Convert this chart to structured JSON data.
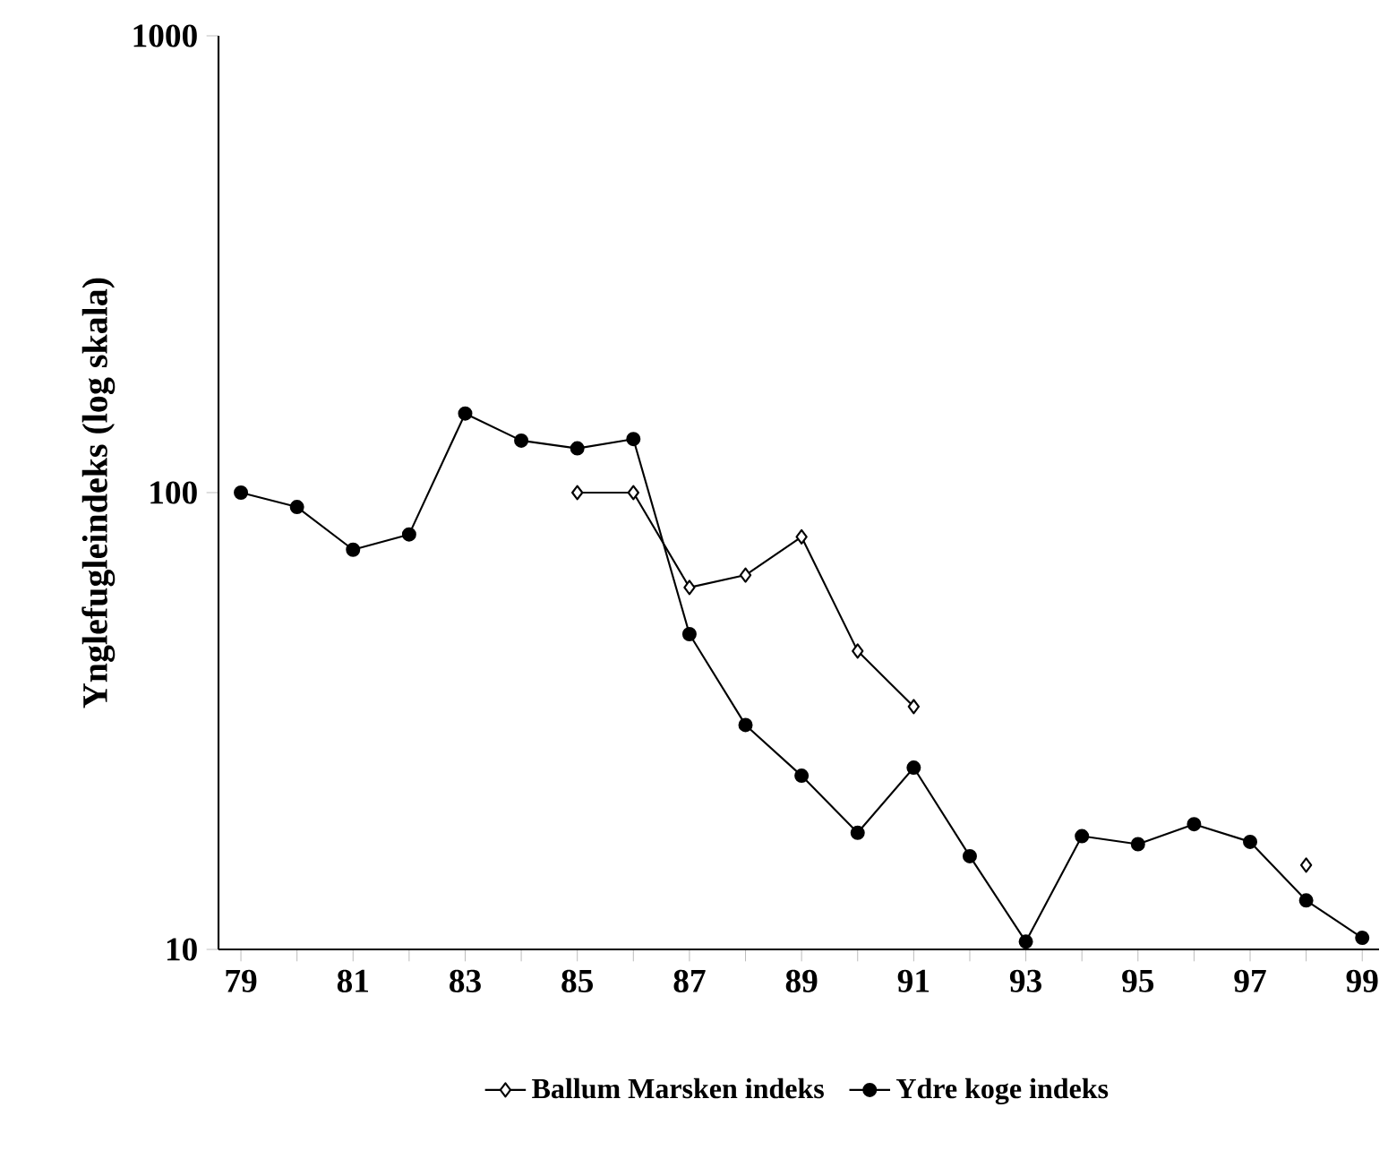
{
  "chart_data": {
    "type": "line",
    "ylabel": "Ynglefugleindeks (log skala)",
    "log": "y",
    "legend": "bottom",
    "line_style": "solid",
    "x": [
      79,
      80,
      81,
      82,
      83,
      84,
      85,
      86,
      87,
      88,
      89,
      90,
      91,
      92,
      93,
      94,
      95,
      96,
      97,
      98,
      99
    ],
    "series": [
      {
        "name": "Ballum Marsken indeks",
        "color": "#000000",
        "marker": "diamond",
        "values": [
          null,
          null,
          null,
          null,
          null,
          null,
          100,
          100,
          62,
          66,
          80,
          45,
          34,
          null,
          null,
          null,
          null,
          null,
          null,
          15.3,
          null
        ]
      },
      {
        "name": "Ydre koge indeks",
        "color": "#000000",
        "marker": "circle",
        "values": [
          100,
          93,
          75,
          81,
          149,
          130,
          125,
          131,
          49,
          31,
          24,
          18,
          25,
          16,
          10.4,
          17.7,
          17,
          18.8,
          17.2,
          12.8,
          10.6
        ]
      }
    ],
    "xlim": [
      78.6,
      99.3
    ],
    "ylim": [
      10,
      1000
    ],
    "xticks": [
      79,
      {
        "value": 80,
        "label": null
      },
      81,
      {
        "value": 82,
        "label": null
      },
      83,
      {
        "value": 84,
        "label": null
      },
      85,
      {
        "value": 86,
        "label": null
      },
      87,
      {
        "value": 88,
        "label": null
      },
      89,
      {
        "value": 90,
        "label": null
      },
      91,
      {
        "value": 92,
        "label": null
      },
      93,
      {
        "value": 94,
        "label": null
      },
      95,
      {
        "value": 96,
        "label": null
      },
      97,
      {
        "value": 98,
        "label": null
      },
      99
    ],
    "yticks": [
      10,
      100,
      1000
    ]
  }
}
